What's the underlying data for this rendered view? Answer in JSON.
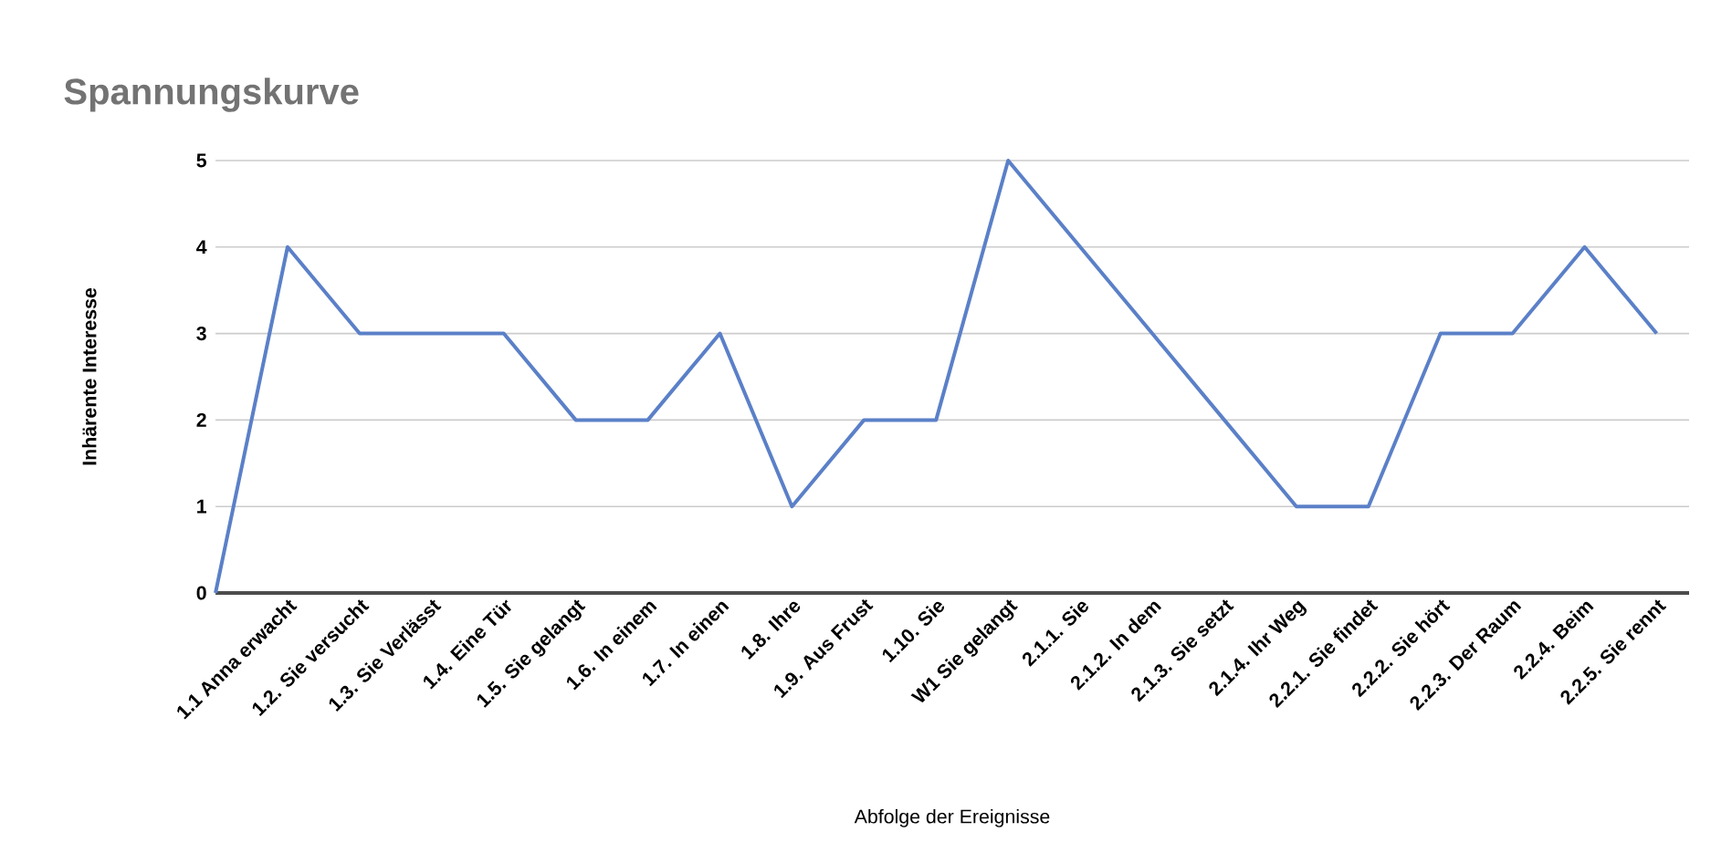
{
  "chart_data": {
    "type": "line",
    "title": "Spannungskurve",
    "xlabel": "Abfolge der Ereignisse",
    "ylabel": "Inhärente Interesse",
    "categories": [
      null,
      "1.1 Anna erwacht",
      "1.2. Sie versucht",
      "1.3. Sie Verlässt",
      "1.4. Eine Tür",
      "1.5. Sie gelangt",
      "1.6. In einem",
      "1.7. In einen",
      "1.8. Ihre",
      "1.9. Aus Frust",
      "1.10. Sie",
      "W1 Sie gelangt",
      "2.1.1. Sie",
      "2.1.2.  In dem",
      "2.1.3. Sie setzt",
      "2.1.4. Ihr Weg",
      "2.2.1. Sie findet",
      "2.2.2. Sie hört",
      "2.2.3. Der Raum",
      "2.2.4. Beim",
      "2.2.5. Sie rennt"
    ],
    "values": [
      0,
      4,
      3,
      3,
      3,
      2,
      2,
      3,
      1,
      2,
      2,
      5,
      4,
      3,
      2,
      1,
      1,
      3,
      3,
      4,
      3
    ],
    "color": "#5b80c8",
    "ylim": [
      0,
      5
    ],
    "yticks": [
      0,
      1,
      2,
      3,
      4,
      5
    ],
    "grid": "y",
    "marker": "none",
    "line_style": "solid"
  }
}
